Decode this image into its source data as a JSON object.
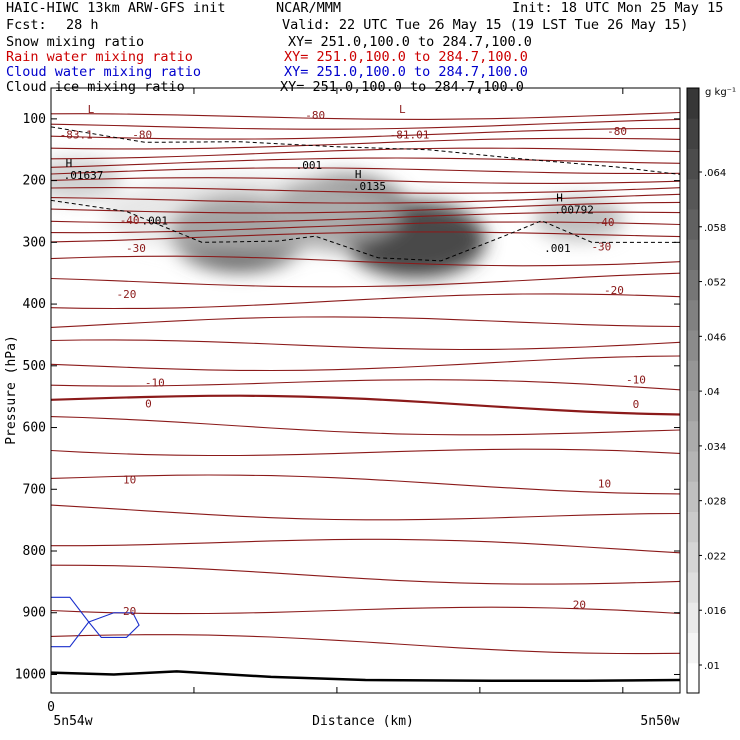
{
  "header": {
    "title_left": "HAIC-HIWC 13km ARW-GFS init",
    "org": "NCAR/MMM",
    "init": "Init: 18 UTC Mon 25 May 15",
    "fcst_label": "Fcst:",
    "fcst_value": "28 h",
    "valid": "Valid: 22 UTC Tue 26 May 15 (19 LST Tue 26 May 15)"
  },
  "fields": [
    {
      "name": "Snow mixing ratio",
      "xy": "XY= 251.0,100.0 to 284.7,100.0",
      "color": "#000000"
    },
    {
      "name": "Rain water mixing ratio",
      "xy": "XY= 251.0,100.0 to 284.7,100.0",
      "color": "#cc0000"
    },
    {
      "name": "Cloud water mixing ratio",
      "xy": "XY= 251.0,100.0 to 284.7,100.0",
      "color": "#0000cc"
    },
    {
      "name": "Cloud ice mixing ratio",
      "xy": "XY= 251.0,100.0 to 284.7,100.0",
      "color": "#000000"
    }
  ],
  "chart_data": {
    "type": "heatmap",
    "ylabel": "Pressure (hPa)",
    "xlabel": "Distance (km)",
    "y_ticks": [
      100,
      200,
      300,
      400,
      500,
      600,
      700,
      800,
      900,
      1000
    ],
    "x_start_tick": "0",
    "x_left_label": "5n54w",
    "x_right_label": "5n50w",
    "ylim": [
      50,
      1030
    ],
    "colorbar": {
      "unit": "g kg⁻¹",
      "levels": [
        ".01",
        ".016",
        ".022",
        ".028",
        ".034",
        ".04",
        ".046",
        ".052",
        ".058",
        ".064"
      ]
    },
    "temperature_labels": [
      {
        "text": "-83.1",
        "x": 0.04,
        "p": 125
      },
      {
        "text": "-80",
        "x": 0.145,
        "p": 125
      },
      {
        "text": "-80",
        "x": 0.42,
        "p": 94
      },
      {
        "text": "-81.01",
        "x": 0.57,
        "p": 125
      },
      {
        "text": "-80",
        "x": 0.9,
        "p": 120
      },
      {
        "text": "-40",
        "x": 0.125,
        "p": 264
      },
      {
        "text": "-40",
        "x": 0.88,
        "p": 267
      },
      {
        "text": "-30",
        "x": 0.135,
        "p": 309
      },
      {
        "text": "-30",
        "x": 0.875,
        "p": 307
      },
      {
        "text": "-20",
        "x": 0.12,
        "p": 384
      },
      {
        "text": "-20",
        "x": 0.895,
        "p": 377
      },
      {
        "text": "-10",
        "x": 0.165,
        "p": 527
      },
      {
        "text": "-10",
        "x": 0.93,
        "p": 522
      },
      {
        "text": "0",
        "x": 0.155,
        "p": 561
      },
      {
        "text": "0",
        "x": 0.93,
        "p": 562
      },
      {
        "text": "10",
        "x": 0.125,
        "p": 684
      },
      {
        "text": "10",
        "x": 0.88,
        "p": 691
      },
      {
        "text": "20",
        "x": 0.125,
        "p": 897
      },
      {
        "text": "20",
        "x": 0.84,
        "p": 887
      }
    ],
    "extrema": [
      {
        "symbol": "L",
        "value": "",
        "x": 0.055,
        "p": 110
      },
      {
        "symbol": "L",
        "value": "",
        "x": 0.55,
        "p": 110
      },
      {
        "symbol": "H",
        "value": ".01637",
        "x": 0.02,
        "p": 197
      },
      {
        "symbol": "H",
        "value": ".0135",
        "x": 0.48,
        "p": 215
      },
      {
        "symbol": "H",
        "value": ".00792",
        "x": 0.8,
        "p": 253
      }
    ],
    "ice_labels": [
      {
        "text": ".001",
        "x": 0.41,
        "p": 175
      },
      {
        "text": ".001",
        "x": 0.165,
        "p": 265
      },
      {
        "text": ".001",
        "x": 0.805,
        "p": 309
      }
    ],
    "snow_maxima": [
      {
        "x": 0.3,
        "p": 285,
        "value": 0.058
      },
      {
        "x": 0.46,
        "p": 252,
        "value": 0.052
      },
      {
        "x": 0.58,
        "p": 296,
        "value": 0.064
      },
      {
        "x": 0.04,
        "p": 198,
        "value": 0.016
      },
      {
        "x": 0.84,
        "p": 262,
        "value": 0.022
      }
    ],
    "surface_pressure": [
      [
        0,
        997
      ],
      [
        0.1,
        1000
      ],
      [
        0.2,
        995
      ],
      [
        0.35,
        1004
      ],
      [
        0.5,
        1009
      ],
      [
        0.7,
        1010
      ],
      [
        0.85,
        1010
      ],
      [
        1.0,
        1009
      ]
    ]
  }
}
